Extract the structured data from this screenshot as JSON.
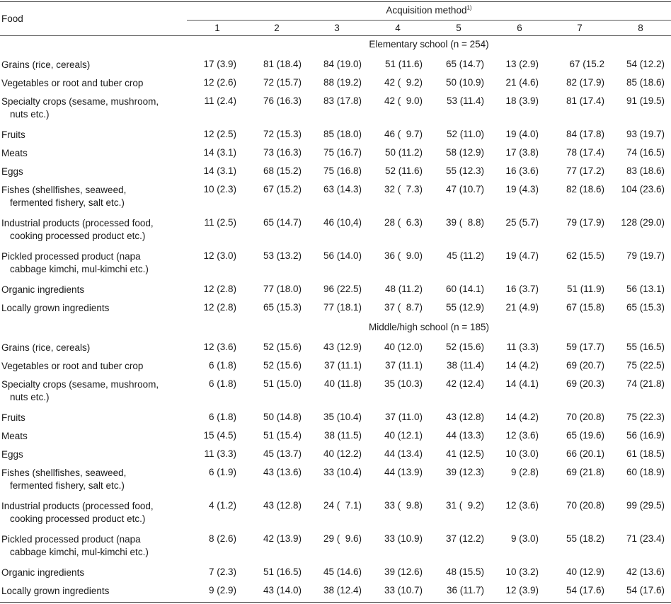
{
  "header": {
    "food_label": "Food",
    "group_label": "Acquisition method",
    "group_footnote": "1)",
    "columns": [
      "1",
      "2",
      "3",
      "4",
      "5",
      "6",
      "7",
      "8"
    ]
  },
  "sections": [
    {
      "title": "Elementary school (n = 254)",
      "rows": [
        {
          "food": [
            "Grains (rice, cereals)"
          ],
          "values": [
            "17 (3.9)",
            "81 (18.4)",
            "84 (19.0)",
            "51 (11.6)",
            "65 (14.7)",
            "13 (2.9)",
            "67 (15.2",
            "54 (12.2)"
          ]
        },
        {
          "food": [
            "Vegetables or root and tuber crop"
          ],
          "values": [
            "12 (2.6)",
            "72 (15.7)",
            "88 (19.2)",
            "42 (  9.2)",
            "50 (10.9)",
            "21 (4.6)",
            "82 (17.9)",
            "85 (18.6)"
          ]
        },
        {
          "food": [
            "Specialty crops (sesame, mushroom,",
            "nuts etc.)"
          ],
          "values": [
            "11 (2.4)",
            "76 (16.3)",
            "83 (17.8)",
            "42 (  9.0)",
            "53 (11.4)",
            "18 (3.9)",
            "81 (17.4)",
            "91 (19.5)"
          ]
        },
        {
          "food": [
            "Fruits"
          ],
          "values": [
            "12 (2.5)",
            "72 (15.3)",
            "85 (18.0)",
            "46 (  9.7)",
            "52 (11.0)",
            "19 (4.0)",
            "84 (17.8)",
            "93 (19.7)"
          ]
        },
        {
          "food": [
            "Meats"
          ],
          "values": [
            "14 (3.1)",
            "73 (16.3)",
            "75 (16.7)",
            "50 (11.2)",
            "58 (12.9)",
            "17 (3.8)",
            "78 (17.4)",
            "74 (16.5)"
          ]
        },
        {
          "food": [
            "Eggs"
          ],
          "values": [
            "14 (3.1)",
            "68 (15.2)",
            "75 (16.8)",
            "52 (11.6)",
            "55 (12.3)",
            "16 (3.6)",
            "77 (17.2)",
            "83 (18.6)"
          ]
        },
        {
          "food": [
            "Fishes (shellfishes, seaweed,",
            "fermented fishery, salt etc.)"
          ],
          "values": [
            "10 (2.3)",
            "67 (15.2)",
            "63 (14.3)",
            "32 (  7.3)",
            "47 (10.7)",
            "19 (4.3)",
            "82 (18.6)",
            "104 (23.6)"
          ]
        },
        {
          "food": [
            "Industrial products (processed food,",
            "cooking processed product etc.)"
          ],
          "values": [
            "11 (2.5)",
            "65 (14.7)",
            "46 (10,4)",
            "28 (  6.3)",
            "39 (  8.8)",
            "25 (5.7)",
            "79 (17.9)",
            "128 (29.0)"
          ]
        },
        {
          "food": [
            "Pickled processed product (napa",
            "cabbage kimchi, mul-kimchi etc.)"
          ],
          "values": [
            "12 (3.0)",
            "53 (13.2)",
            "56 (14.0)",
            "36 (  9.0)",
            "45 (11.2)",
            "19 (4.7)",
            "62 (15.5)",
            "79 (19.7)"
          ]
        },
        {
          "food": [
            "Organic ingredients"
          ],
          "values": [
            "12 (2.8)",
            "77 (18.0)",
            "96 (22.5)",
            "48 (11.2)",
            "60 (14.1)",
            "16 (3.7)",
            "51 (11.9)",
            "56 (13.1)"
          ]
        },
        {
          "food": [
            "Locally grown ingredients"
          ],
          "values": [
            "12 (2.8)",
            "65 (15.3)",
            "77 (18.1)",
            "37 (  8.7)",
            "55 (12.9)",
            "21 (4.9)",
            "67 (15.8)",
            "65 (15.3)"
          ]
        }
      ]
    },
    {
      "title": "Middle/high school (n = 185)",
      "rows": [
        {
          "food": [
            "Grains (rice, cereals)"
          ],
          "values": [
            "12 (3.6)",
            "52 (15.6)",
            "43 (12.9)",
            "40 (12.0)",
            "52 (15.6)",
            "11 (3.3)",
            "59 (17.7)",
            "55 (16.5)"
          ]
        },
        {
          "food": [
            "Vegetables or root and tuber crop"
          ],
          "values": [
            "6 (1.8)",
            "52 (15.6)",
            "37 (11.1)",
            "37 (11.1)",
            "38 (11.4)",
            "14 (4.2)",
            "69 (20.7)",
            "75 (22.5)"
          ]
        },
        {
          "food": [
            "Specialty crops (sesame, mushroom,",
            "nuts etc.)"
          ],
          "values": [
            "6 (1.8)",
            "51 (15.0)",
            "40 (11.8)",
            "35 (10.3)",
            "42 (12.4)",
            "14 (4.1)",
            "69 (20.3)",
            "74 (21.8)"
          ]
        },
        {
          "food": [
            "Fruits"
          ],
          "values": [
            "6 (1.8)",
            "50 (14.8)",
            "35 (10.4)",
            "37 (11.0)",
            "43 (12.8)",
            "14 (4.2)",
            "70 (20.8)",
            "75 (22.3)"
          ]
        },
        {
          "food": [
            "Meats"
          ],
          "values": [
            "15 (4.5)",
            "51 (15.4)",
            "38 (11.5)",
            "40 (12.1)",
            "44 (13.3)",
            "12 (3.6)",
            "65 (19.6)",
            "56 (16.9)"
          ]
        },
        {
          "food": [
            "Eggs"
          ],
          "values": [
            "11 (3.3)",
            "45 (13.7)",
            "40 (12.2)",
            "44 (13.4)",
            "41 (12.5)",
            "10 (3.0)",
            "66 (20.1)",
            "61 (18.5)"
          ]
        },
        {
          "food": [
            "Fishes (shellfishes, seaweed,",
            "fermented fishery, salt etc.)"
          ],
          "values": [
            "6 (1.9)",
            "43 (13.6)",
            "33 (10.4)",
            "44 (13.9)",
            "39 (12.3)",
            "9 (2.8)",
            "69 (21.8)",
            "60 (18.9)"
          ]
        },
        {
          "food": [
            "Industrial products (processed food,",
            "cooking processed product etc.)"
          ],
          "values": [
            "4 (1.2)",
            "43 (12.8)",
            "24 (  7.1)",
            "33 (  9.8)",
            "31 (  9.2)",
            "12 (3.6)",
            "70 (20.8)",
            "99 (29.5)"
          ]
        },
        {
          "food": [
            "Pickled processed product (napa",
            "cabbage kimchi, mul-kimchi etc.)"
          ],
          "values": [
            "8 (2.6)",
            "42 (13.9)",
            "29 (  9.6)",
            "33 (10.9)",
            "37 (12.2)",
            "9 (3.0)",
            "55 (18.2)",
            "71 (23.4)"
          ]
        },
        {
          "food": [
            "Organic ingredients"
          ],
          "values": [
            "7 (2.3)",
            "51 (16.5)",
            "45 (14.6)",
            "39 (12.6)",
            "48 (15.5)",
            "10 (3.2)",
            "40 (12.9)",
            "42 (13.6)"
          ]
        },
        {
          "food": [
            "Locally grown ingredients"
          ],
          "values": [
            "9 (2.9)",
            "43 (14.0)",
            "38 (12.4)",
            "33 (10.7)",
            "36 (11.7)",
            "12 (3.9)",
            "54 (17.6)",
            "54 (17.6)"
          ]
        }
      ]
    }
  ]
}
